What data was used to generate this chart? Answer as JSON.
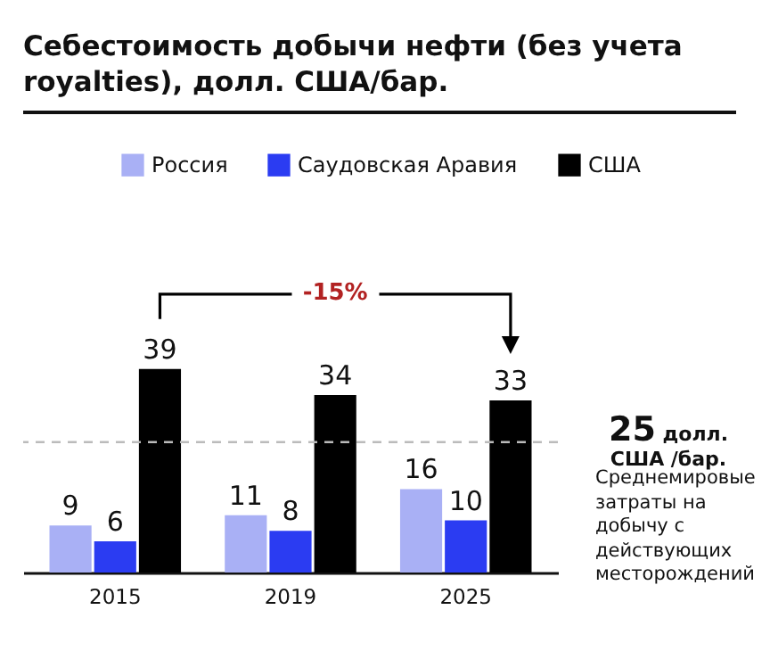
{
  "chart_data": {
    "type": "bar",
    "title": "Себестоимость добычи нефти (без учета royalties), долл. США/бар.",
    "categories": [
      "2015",
      "2019",
      "2025"
    ],
    "series": [
      {
        "name": "Россия",
        "color": "#a9b0f5",
        "values": [
          9,
          11,
          16
        ]
      },
      {
        "name": "Саудовская Аравия",
        "color": "#2b3cf2",
        "values": [
          6,
          8,
          10
        ]
      },
      {
        "name": "США",
        "color": "#000000",
        "values": [
          39,
          34,
          33
        ]
      }
    ],
    "data_labels": true,
    "legend": "top right",
    "ref_lines": [
      {
        "axis": "y",
        "value": 25,
        "label": "25 долл. США /бар.",
        "color": "#bbbbbb",
        "line_style": "dashed"
      }
    ],
    "annotations": [
      "-15%",
      "Среднемировые затраты на добычу с действующих месторождений"
    ]
  }
}
